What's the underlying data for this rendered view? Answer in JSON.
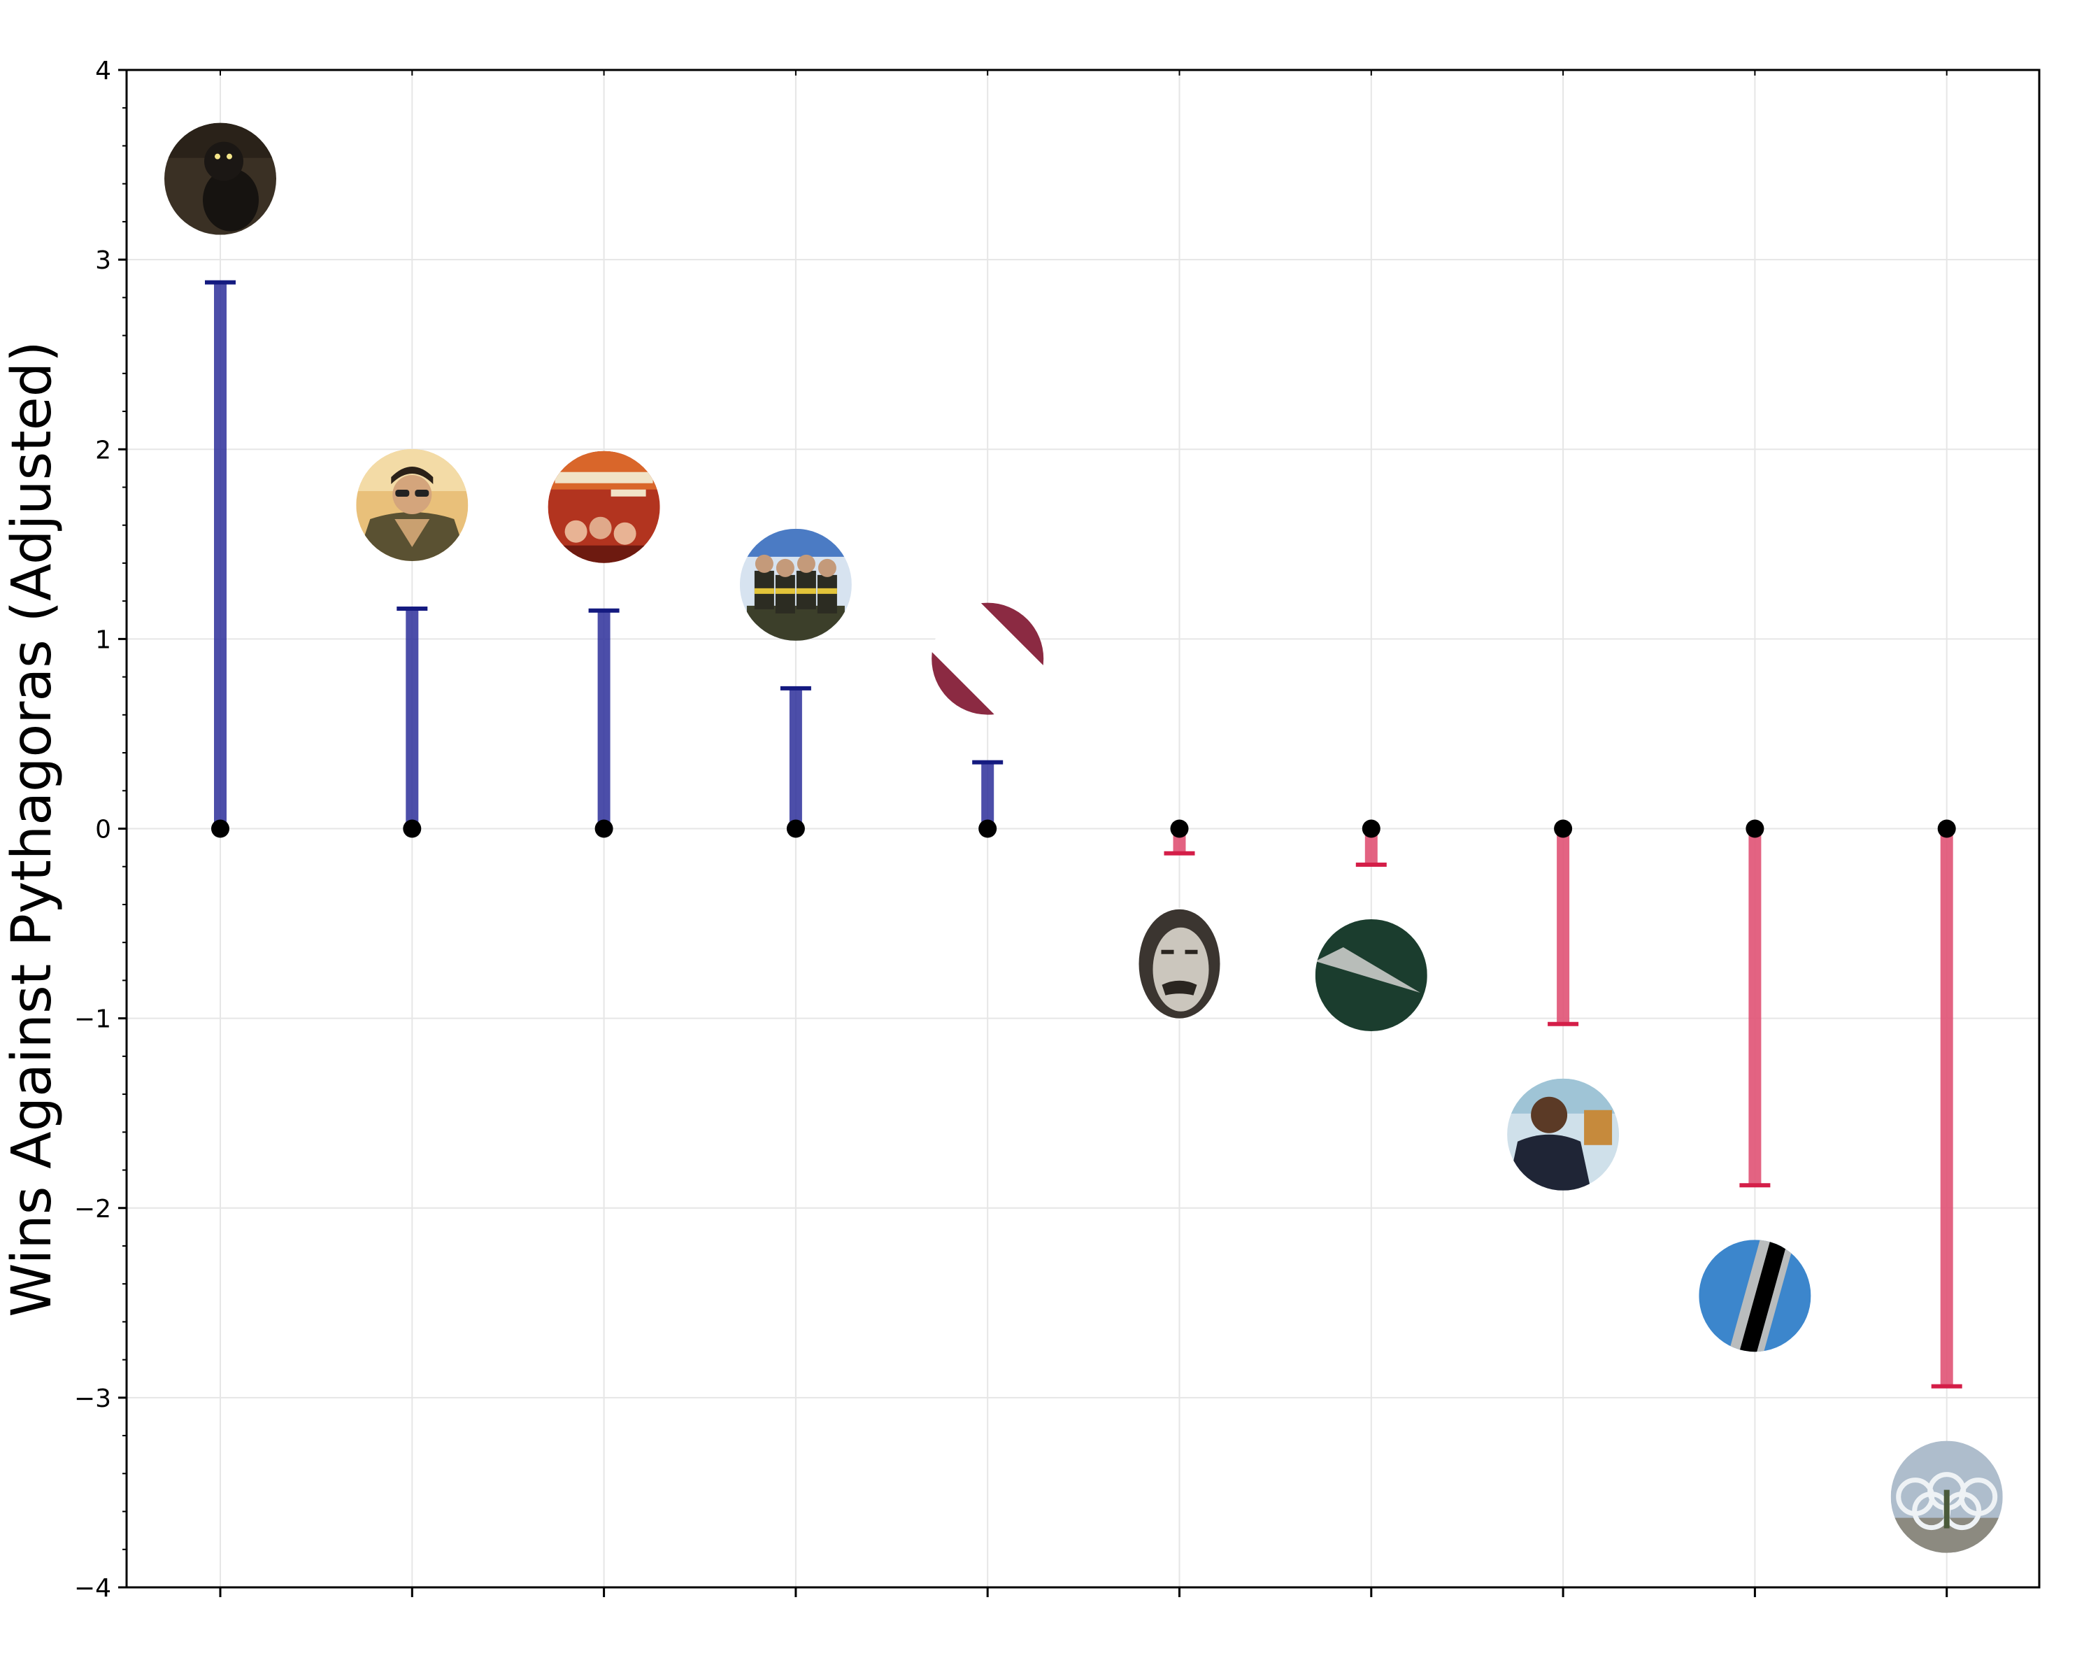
{
  "chart_data": {
    "type": "lollipop",
    "title": "",
    "xlabel": "",
    "ylabel": "Wins Against Pythagoras (Adjusted)",
    "ylim": [
      -4,
      4
    ],
    "yticks": [
      4,
      3,
      2,
      1,
      0,
      -1,
      -2,
      -3,
      -4
    ],
    "ytick_labels": [
      "4",
      "3",
      "2",
      "1",
      "0",
      "−1",
      "−2",
      "−3",
      "−4"
    ],
    "xtick_labels": [],
    "grid": true,
    "colors": {
      "positive": "#2d2f9a",
      "positive_cap": "#141a80",
      "negative": "#e05274",
      "negative_cap": "#d41e48",
      "dot": "#000000",
      "grid": "#e6e6e6"
    },
    "points": [
      {
        "value": 2.88,
        "icon": "cat-in-dark-image"
      },
      {
        "value": 1.16,
        "icon": "aviator-pilot-image"
      },
      {
        "value": 1.15,
        "icon": "movie-poster-image"
      },
      {
        "value": 0.74,
        "icon": "bobsled-team-image"
      },
      {
        "value": 0.35,
        "icon": "maroon-split-circle-logo"
      },
      {
        "value": -0.13,
        "icon": "bearded-man-engraving-image"
      },
      {
        "value": -0.19,
        "icon": "dark-green-circle-logo"
      },
      {
        "value": -1.03,
        "icon": "football-player-image"
      },
      {
        "value": -1.88,
        "icon": "blue-striped-circle-logo"
      },
      {
        "value": -2.94,
        "icon": "olympic-rings-monument-image"
      }
    ]
  }
}
